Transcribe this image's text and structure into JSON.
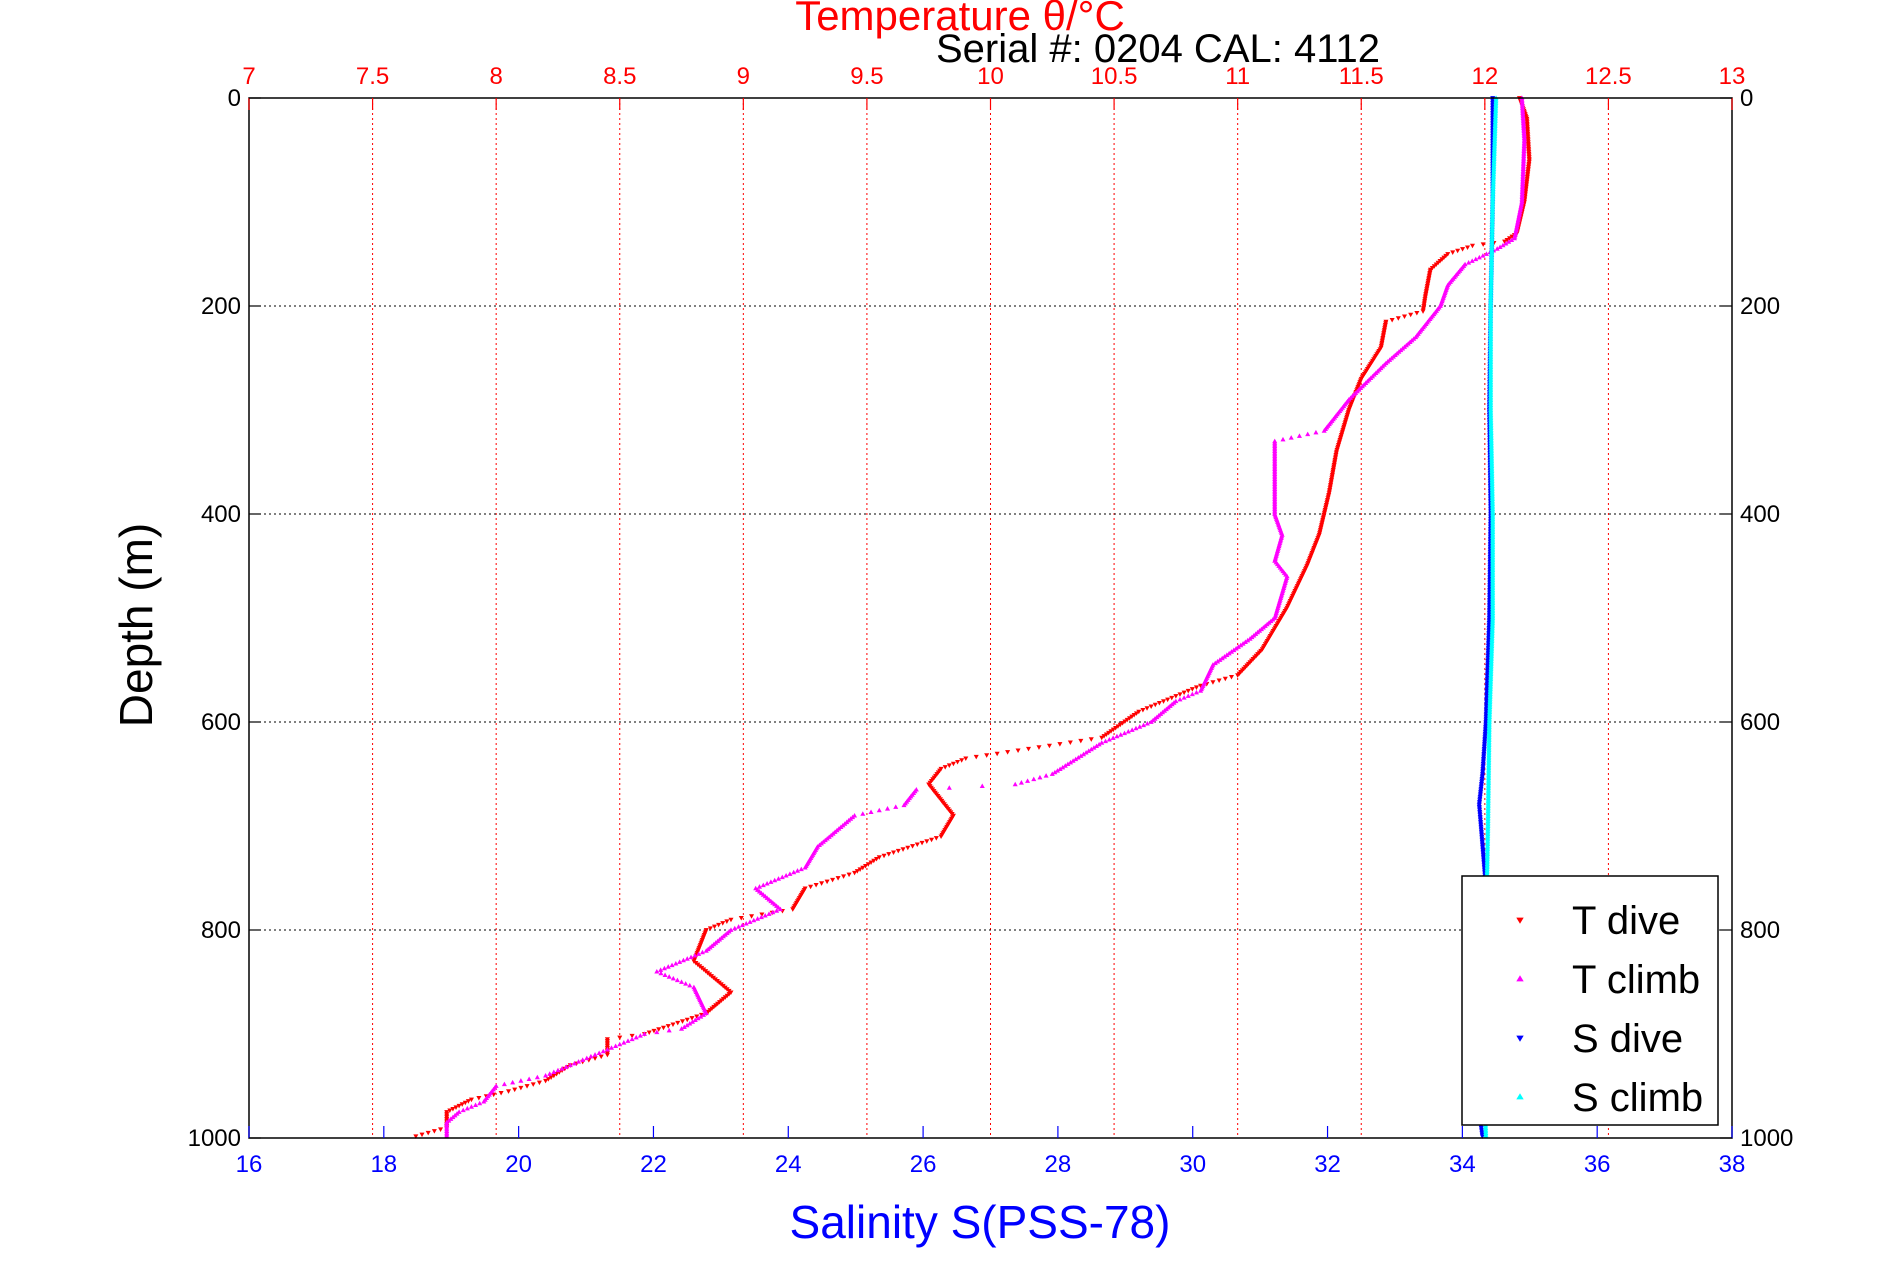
{
  "chart_data": {
    "type": "scatter",
    "title": "Temperature θ/°C",
    "subtitle": "Serial #: 0204  CAL: 4112",
    "xlabel": "Salinity S(PSS-78)",
    "ylabel": "Depth (m)",
    "temperature_axis": {
      "lim": [
        7,
        13
      ],
      "ticks": [
        "7",
        "7.5",
        "8",
        "8.5",
        "9",
        "9.5",
        "10",
        "10.5",
        "11",
        "11.5",
        "12",
        "12.5",
        "13"
      ],
      "color": "#ff0000",
      "grid": true
    },
    "salinity_axis": {
      "lim": [
        16,
        38
      ],
      "ticks": [
        "16",
        "18",
        "20",
        "22",
        "24",
        "26",
        "28",
        "30",
        "32",
        "34",
        "36",
        "38"
      ],
      "color": "#0000ff"
    },
    "depth_axis": {
      "lim": [
        0,
        1000
      ],
      "reversed": true,
      "ticks": [
        "0",
        "200",
        "400",
        "600",
        "800",
        "1000"
      ],
      "grid": true
    },
    "legend": {
      "position": "bottom-right",
      "entries": [
        {
          "label": "T dive",
          "color": "#ff0000"
        },
        {
          "label": "T climb",
          "color": "#ff00ff"
        },
        {
          "label": "S dive",
          "color": "#0000ff"
        },
        {
          "label": "S climb",
          "color": "#00ffff"
        }
      ]
    },
    "series": [
      {
        "name": "T dive",
        "color": "#ff0000",
        "axis": "temperature",
        "points": [
          [
            12.14,
            0
          ],
          [
            12.17,
            20
          ],
          [
            12.18,
            60
          ],
          [
            12.16,
            100
          ],
          [
            12.13,
            130
          ],
          [
            12.08,
            138
          ],
          [
            11.95,
            142
          ],
          [
            11.85,
            150
          ],
          [
            11.78,
            165
          ],
          [
            11.76,
            190
          ],
          [
            11.75,
            205
          ],
          [
            11.6,
            215
          ],
          [
            11.58,
            240
          ],
          [
            11.5,
            270
          ],
          [
            11.45,
            300
          ],
          [
            11.4,
            340
          ],
          [
            11.37,
            380
          ],
          [
            11.33,
            420
          ],
          [
            11.28,
            450
          ],
          [
            11.2,
            490
          ],
          [
            11.1,
            530
          ],
          [
            11.0,
            555
          ],
          [
            10.85,
            565
          ],
          [
            10.75,
            575
          ],
          [
            10.6,
            590
          ],
          [
            10.45,
            615
          ],
          [
            9.9,
            635
          ],
          [
            9.8,
            645
          ],
          [
            9.75,
            660
          ],
          [
            9.85,
            690
          ],
          [
            9.8,
            710
          ],
          [
            9.55,
            730
          ],
          [
            9.45,
            745
          ],
          [
            9.25,
            760
          ],
          [
            9.2,
            780
          ],
          [
            8.95,
            790
          ],
          [
            8.85,
            800
          ],
          [
            8.8,
            830
          ],
          [
            8.95,
            860
          ],
          [
            8.85,
            880
          ],
          [
            8.6,
            900
          ],
          [
            8.45,
            905
          ],
          [
            8.45,
            920
          ],
          [
            8.3,
            930
          ],
          [
            8.2,
            945
          ],
          [
            8.05,
            955
          ],
          [
            7.9,
            963
          ],
          [
            7.8,
            975
          ],
          [
            7.8,
            990
          ],
          [
            7.65,
            1000
          ]
        ]
      },
      {
        "name": "T climb",
        "color": "#ff00ff",
        "axis": "temperature",
        "points": [
          [
            12.15,
            0
          ],
          [
            12.16,
            40
          ],
          [
            12.15,
            100
          ],
          [
            12.12,
            135
          ],
          [
            12.05,
            145
          ],
          [
            11.92,
            160
          ],
          [
            11.85,
            180
          ],
          [
            11.82,
            200
          ],
          [
            11.72,
            230
          ],
          [
            11.6,
            255
          ],
          [
            11.45,
            290
          ],
          [
            11.35,
            320
          ],
          [
            11.15,
            330
          ],
          [
            11.15,
            360
          ],
          [
            11.15,
            400
          ],
          [
            11.18,
            420
          ],
          [
            11.15,
            445
          ],
          [
            11.2,
            460
          ],
          [
            11.15,
            500
          ],
          [
            11.05,
            520
          ],
          [
            10.9,
            545
          ],
          [
            10.85,
            570
          ],
          [
            10.75,
            580
          ],
          [
            10.65,
            600
          ],
          [
            10.45,
            620
          ],
          [
            10.25,
            650
          ],
          [
            10.1,
            660
          ],
          [
            9.7,
            665
          ],
          [
            9.65,
            680
          ],
          [
            9.45,
            690
          ],
          [
            9.3,
            720
          ],
          [
            9.25,
            740
          ],
          [
            9.05,
            760
          ],
          [
            9.15,
            780
          ],
          [
            8.95,
            800
          ],
          [
            8.85,
            820
          ],
          [
            8.65,
            840
          ],
          [
            8.8,
            855
          ],
          [
            8.85,
            880
          ],
          [
            8.75,
            895
          ],
          [
            8.6,
            900
          ],
          [
            8.5,
            910
          ],
          [
            8.35,
            925
          ],
          [
            8.2,
            940
          ],
          [
            8.0,
            950
          ],
          [
            7.95,
            965
          ],
          [
            7.85,
            975
          ],
          [
            7.8,
            985
          ],
          [
            7.8,
            1000
          ]
        ]
      },
      {
        "name": "S dive",
        "color": "#0000ff",
        "axis": "salinity",
        "points": [
          [
            34.45,
            0
          ],
          [
            34.45,
            100
          ],
          [
            34.42,
            200
          ],
          [
            34.4,
            300
          ],
          [
            34.42,
            400
          ],
          [
            34.4,
            500
          ],
          [
            34.35,
            600
          ],
          [
            34.3,
            650
          ],
          [
            34.25,
            680
          ],
          [
            34.3,
            720
          ],
          [
            34.35,
            760
          ],
          [
            34.3,
            800
          ],
          [
            34.25,
            850
          ],
          [
            34.2,
            900
          ],
          [
            34.2,
            950
          ],
          [
            34.3,
            1000
          ]
        ]
      },
      {
        "name": "S climb",
        "color": "#00ffff",
        "axis": "salinity",
        "points": [
          [
            34.5,
            0
          ],
          [
            34.45,
            100
          ],
          [
            34.42,
            200
          ],
          [
            34.42,
            300
          ],
          [
            34.45,
            400
          ],
          [
            34.45,
            500
          ],
          [
            34.4,
            600
          ],
          [
            34.38,
            700
          ],
          [
            34.35,
            800
          ],
          [
            34.3,
            900
          ],
          [
            34.35,
            1000
          ]
        ]
      }
    ]
  }
}
